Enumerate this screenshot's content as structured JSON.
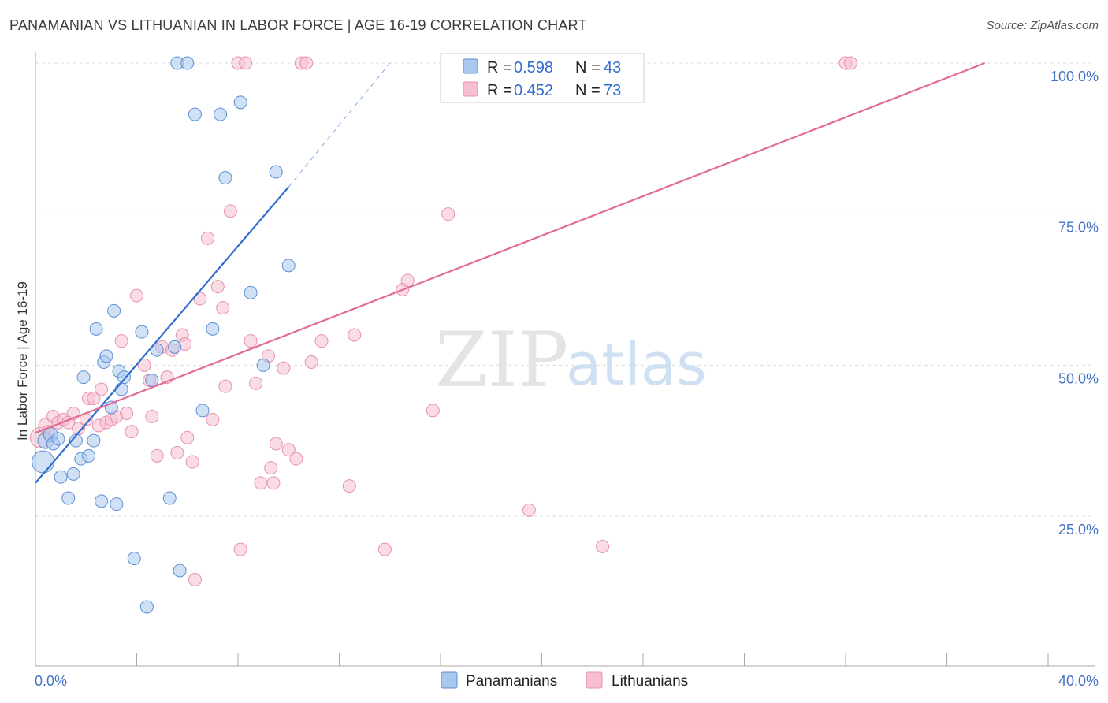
{
  "title": "PANAMANIAN VS LITHUANIAN IN LABOR FORCE | AGE 16-19 CORRELATION CHART",
  "source": "Source: ZipAtlas.com",
  "watermark": {
    "part1": "ZIP",
    "part2": "atlas"
  },
  "colors": {
    "blue_fill": "#a9c8ee",
    "blue_stroke": "#5b8fd4",
    "blue_line": "#2f6dd0",
    "pink_fill": "#f6bfd0",
    "pink_stroke": "#e891ad",
    "pink_line": "#e36b93",
    "grid": "#dddddd",
    "axis": "#aaaaaa"
  },
  "legend": {
    "rows": [
      {
        "r_label": "R =",
        "r_value": "0.598",
        "n_label": "N =",
        "n_value": "43"
      },
      {
        "r_label": "R =",
        "r_value": "0.452",
        "n_label": "N =",
        "n_value": "73"
      }
    ]
  },
  "chart_data": {
    "type": "scatter",
    "title": "PANAMANIAN VS LITHUANIAN IN LABOR FORCE | AGE 16-19 CORRELATION CHART",
    "xlabel": "",
    "ylabel": "In Labor Force | Age 16-19",
    "xlim": [
      0,
      40
    ],
    "ylim": [
      0,
      102
    ],
    "x_tick_labels": [
      "0.0%",
      "40.0%"
    ],
    "y_ticks": [
      25,
      50,
      75,
      100
    ],
    "y_tick_labels": [
      "25.0%",
      "50.0%",
      "75.0%",
      "100.0%"
    ],
    "grid": true,
    "legend_position": "top-center",
    "series": [
      {
        "name": "Panamanians",
        "color": "#5b8fd4",
        "trend": {
          "x0": 0,
          "y0": 30.5,
          "x1": 10.0,
          "y1": 79.5,
          "dash_to_x": 14.0,
          "dash_to_y": 100
        },
        "points": [
          [
            0.3,
            34.0,
            14
          ],
          [
            0.4,
            37.5,
            10
          ],
          [
            0.6,
            38.5,
            9
          ],
          [
            0.7,
            37.0,
            8
          ],
          [
            0.9,
            37.8,
            8
          ],
          [
            1.0,
            31.5,
            8
          ],
          [
            1.3,
            28.0,
            8
          ],
          [
            1.5,
            32.0,
            8
          ],
          [
            1.6,
            37.5,
            8
          ],
          [
            1.8,
            34.5,
            8
          ],
          [
            1.9,
            48.0,
            8
          ],
          [
            2.1,
            35.0,
            8
          ],
          [
            2.3,
            37.5,
            8
          ],
          [
            2.4,
            56.0,
            8
          ],
          [
            2.6,
            27.5,
            8
          ],
          [
            2.7,
            50.5,
            8
          ],
          [
            2.8,
            51.5,
            8
          ],
          [
            3.0,
            43.0,
            8
          ],
          [
            3.1,
            59.0,
            8
          ],
          [
            3.3,
            49.0,
            8
          ],
          [
            3.4,
            46.0,
            8
          ],
          [
            3.5,
            48.0,
            8
          ],
          [
            3.9,
            18.0,
            8
          ],
          [
            4.2,
            55.5,
            8
          ],
          [
            4.4,
            10.0,
            8
          ],
          [
            4.6,
            47.5,
            8
          ],
          [
            4.8,
            52.5,
            8
          ],
          [
            5.3,
            28.0,
            8
          ],
          [
            5.5,
            53.0,
            8
          ],
          [
            5.7,
            16.0,
            8
          ],
          [
            5.6,
            100.0,
            8
          ],
          [
            6.0,
            100.0,
            8
          ],
          [
            6.3,
            91.5,
            8
          ],
          [
            6.6,
            42.5,
            8
          ],
          [
            7.0,
            56.0,
            8
          ],
          [
            7.3,
            91.5,
            8
          ],
          [
            7.5,
            81.0,
            8
          ],
          [
            8.1,
            93.5,
            8
          ],
          [
            9.0,
            50.0,
            8
          ],
          [
            9.5,
            82.0,
            8
          ],
          [
            10.0,
            66.5,
            8
          ],
          [
            3.2,
            27.0,
            0
          ],
          [
            8.5,
            62.0,
            0
          ]
        ]
      },
      {
        "name": "Lithuanians",
        "color": "#e891ad",
        "trend": {
          "x0": 0,
          "y0": 38.8,
          "x1": 37.5,
          "y1": 100
        },
        "points": [
          [
            0.2,
            38.0,
            13
          ],
          [
            0.4,
            40.0,
            9
          ],
          [
            0.5,
            39.0,
            8
          ],
          [
            0.7,
            41.5,
            8
          ],
          [
            0.9,
            40.5,
            8
          ],
          [
            1.1,
            41.0,
            8
          ],
          [
            1.3,
            40.5,
            8
          ],
          [
            1.5,
            42.0,
            8
          ],
          [
            1.7,
            39.5,
            8
          ],
          [
            2.0,
            41.0,
            8
          ],
          [
            2.1,
            44.5,
            8
          ],
          [
            2.3,
            44.5,
            8
          ],
          [
            2.5,
            40.0,
            8
          ],
          [
            2.6,
            46.0,
            8
          ],
          [
            2.8,
            40.5,
            8
          ],
          [
            3.0,
            41.0,
            8
          ],
          [
            3.2,
            41.5,
            8
          ],
          [
            3.4,
            54.0,
            8
          ],
          [
            3.6,
            42.0,
            8
          ],
          [
            3.8,
            39.0,
            8
          ],
          [
            4.0,
            61.5,
            8
          ],
          [
            4.3,
            50.0,
            8
          ],
          [
            4.5,
            47.5,
            8
          ],
          [
            4.6,
            41.5,
            8
          ],
          [
            4.8,
            35.0,
            8
          ],
          [
            5.0,
            53.0,
            8
          ],
          [
            5.2,
            48.0,
            8
          ],
          [
            5.4,
            52.5,
            8
          ],
          [
            5.6,
            35.5,
            8
          ],
          [
            5.8,
            55.0,
            8
          ],
          [
            5.9,
            53.5,
            8
          ],
          [
            6.0,
            38.0,
            8
          ],
          [
            6.2,
            34.0,
            8
          ],
          [
            6.3,
            14.5,
            8
          ],
          [
            6.5,
            61.0,
            8
          ],
          [
            6.8,
            71.0,
            8
          ],
          [
            7.0,
            41.0,
            8
          ],
          [
            7.2,
            63.0,
            8
          ],
          [
            7.4,
            59.5,
            8
          ],
          [
            7.5,
            46.5,
            8
          ],
          [
            7.7,
            75.5,
            8
          ],
          [
            8.0,
            100.0,
            8
          ],
          [
            8.1,
            19.5,
            8
          ],
          [
            8.3,
            100.0,
            8
          ],
          [
            8.5,
            54.0,
            8
          ],
          [
            8.7,
            47.0,
            8
          ],
          [
            8.9,
            30.5,
            8
          ],
          [
            9.2,
            51.5,
            8
          ],
          [
            9.3,
            33.0,
            8
          ],
          [
            9.4,
            30.5,
            8
          ],
          [
            9.5,
            37.0,
            8
          ],
          [
            9.8,
            49.5,
            8
          ],
          [
            10.0,
            36.0,
            8
          ],
          [
            10.3,
            34.5,
            8
          ],
          [
            10.5,
            100.0,
            8
          ],
          [
            10.7,
            100.0,
            8
          ],
          [
            10.9,
            50.5,
            8
          ],
          [
            11.3,
            54.0,
            8
          ],
          [
            12.4,
            30.0,
            8
          ],
          [
            12.6,
            55.0,
            8
          ],
          [
            13.8,
            19.5,
            8
          ],
          [
            14.5,
            62.5,
            8
          ],
          [
            14.7,
            64.0,
            8
          ],
          [
            15.7,
            42.5,
            8
          ],
          [
            16.3,
            75.0,
            8
          ],
          [
            17.0,
            100.0,
            8
          ],
          [
            17.4,
            100.0,
            8
          ],
          [
            18.5,
            100.0,
            8
          ],
          [
            19.5,
            26.0,
            8
          ],
          [
            21.0,
            100.0,
            8
          ],
          [
            22.4,
            20.0,
            8
          ],
          [
            32.0,
            100.0,
            8
          ],
          [
            32.2,
            100.0,
            0
          ]
        ]
      }
    ]
  },
  "bottom_legend": {
    "items": [
      "Panamanians",
      "Lithuanians"
    ]
  }
}
